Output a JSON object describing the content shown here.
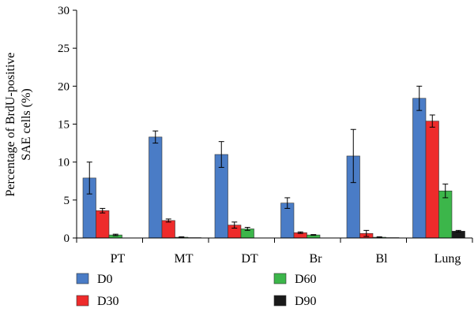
{
  "chart_data": {
    "type": "bar",
    "title": "",
    "xlabel": "",
    "ylabel_lines": [
      "Percentage of BrdU-positive",
      "SAE cells (%)"
    ],
    "ylim": [
      0,
      30
    ],
    "yticks": [
      "0",
      "5",
      "10",
      "15",
      "20",
      "25",
      "30"
    ],
    "grid": false,
    "legend_position": "bottom",
    "categories": [
      "PT",
      "MT",
      "DT",
      "Br",
      "Bl",
      "Lung"
    ],
    "series": [
      {
        "name": "D0",
        "color": "#4a7cc6",
        "values": [
          7.9,
          13.3,
          11.0,
          4.6,
          10.8,
          18.4
        ],
        "errors": [
          2.1,
          0.8,
          1.7,
          0.7,
          3.5,
          1.6
        ]
      },
      {
        "name": "D30",
        "color": "#ee2b2b",
        "values": [
          3.6,
          2.3,
          1.7,
          0.7,
          0.6,
          15.4
        ],
        "errors": [
          0.3,
          0.2,
          0.4,
          0.1,
          0.4,
          0.8
        ]
      },
      {
        "name": "D60",
        "color": "#3cb64a",
        "values": [
          0.4,
          0.1,
          1.2,
          0.4,
          0.1,
          6.2
        ],
        "errors": [
          0.1,
          0.05,
          0.2,
          0.05,
          0.05,
          0.9
        ]
      },
      {
        "name": "D90",
        "color": "#1a1a1a",
        "values": [
          0.0,
          0.05,
          0.0,
          0.0,
          0.05,
          0.9
        ],
        "errors": [
          0.0,
          0.0,
          0.0,
          0.0,
          0.0,
          0.1
        ]
      }
    ]
  }
}
